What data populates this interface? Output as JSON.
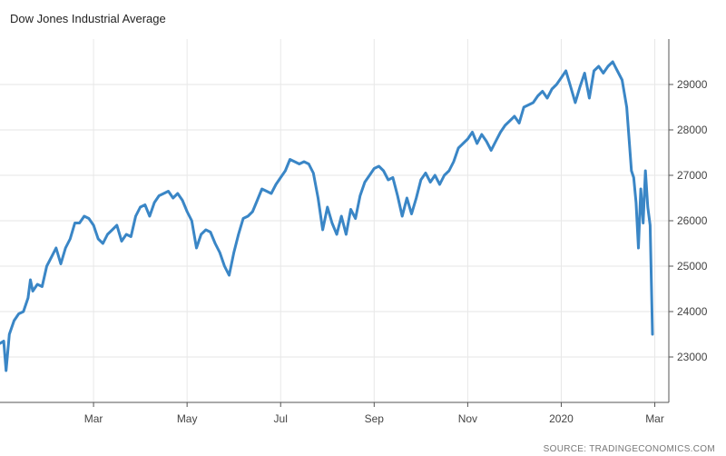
{
  "chart_data": {
    "type": "line",
    "title": "Dow Jones Industrial Average",
    "source": "SOURCE: TRADINGECONOMICS.COM",
    "xlabel": "",
    "ylabel": "",
    "ylim": [
      22000,
      30000
    ],
    "yticks": [
      23000,
      24000,
      25000,
      26000,
      27000,
      28000,
      29000
    ],
    "xticks": [
      {
        "label": "Mar",
        "x": 2.0
      },
      {
        "label": "May",
        "x": 4.0
      },
      {
        "label": "Jul",
        "x": 6.0
      },
      {
        "label": "Sep",
        "x": 8.0
      },
      {
        "label": "Nov",
        "x": 10.0
      },
      {
        "label": "2020",
        "x": 12.0
      },
      {
        "label": "Mar",
        "x": 14.0
      }
    ],
    "grid": true,
    "series": [
      {
        "values": [
          [
            0.0,
            23300
          ],
          [
            0.08,
            23350
          ],
          [
            0.13,
            22700
          ],
          [
            0.2,
            23500
          ],
          [
            0.3,
            23800
          ],
          [
            0.4,
            23950
          ],
          [
            0.5,
            24000
          ],
          [
            0.6,
            24300
          ],
          [
            0.65,
            24700
          ],
          [
            0.7,
            24450
          ],
          [
            0.8,
            24600
          ],
          [
            0.9,
            24550
          ],
          [
            1.0,
            25000
          ],
          [
            1.1,
            25200
          ],
          [
            1.2,
            25400
          ],
          [
            1.3,
            25050
          ],
          [
            1.4,
            25400
          ],
          [
            1.5,
            25600
          ],
          [
            1.6,
            25950
          ],
          [
            1.7,
            25950
          ],
          [
            1.8,
            26100
          ],
          [
            1.9,
            26050
          ],
          [
            2.0,
            25900
          ],
          [
            2.1,
            25600
          ],
          [
            2.2,
            25500
          ],
          [
            2.3,
            25700
          ],
          [
            2.4,
            25800
          ],
          [
            2.5,
            25900
          ],
          [
            2.6,
            25550
          ],
          [
            2.7,
            25700
          ],
          [
            2.8,
            25650
          ],
          [
            2.9,
            26100
          ],
          [
            3.0,
            26300
          ],
          [
            3.1,
            26350
          ],
          [
            3.2,
            26100
          ],
          [
            3.3,
            26400
          ],
          [
            3.4,
            26550
          ],
          [
            3.5,
            26600
          ],
          [
            3.6,
            26650
          ],
          [
            3.7,
            26500
          ],
          [
            3.8,
            26600
          ],
          [
            3.9,
            26450
          ],
          [
            4.0,
            26200
          ],
          [
            4.1,
            26000
          ],
          [
            4.2,
            25400
          ],
          [
            4.3,
            25700
          ],
          [
            4.4,
            25800
          ],
          [
            4.5,
            25750
          ],
          [
            4.6,
            25500
          ],
          [
            4.7,
            25300
          ],
          [
            4.8,
            25000
          ],
          [
            4.9,
            24800
          ],
          [
            5.0,
            25300
          ],
          [
            5.1,
            25700
          ],
          [
            5.2,
            26050
          ],
          [
            5.3,
            26100
          ],
          [
            5.4,
            26200
          ],
          [
            5.5,
            26450
          ],
          [
            5.6,
            26700
          ],
          [
            5.7,
            26650
          ],
          [
            5.8,
            26600
          ],
          [
            5.9,
            26800
          ],
          [
            6.0,
            26950
          ],
          [
            6.1,
            27100
          ],
          [
            6.2,
            27350
          ],
          [
            6.3,
            27300
          ],
          [
            6.4,
            27250
          ],
          [
            6.5,
            27300
          ],
          [
            6.6,
            27250
          ],
          [
            6.7,
            27050
          ],
          [
            6.8,
            26500
          ],
          [
            6.9,
            25800
          ],
          [
            7.0,
            26300
          ],
          [
            7.1,
            25950
          ],
          [
            7.2,
            25700
          ],
          [
            7.3,
            26100
          ],
          [
            7.4,
            25700
          ],
          [
            7.5,
            26250
          ],
          [
            7.6,
            26050
          ],
          [
            7.7,
            26550
          ],
          [
            7.8,
            26850
          ],
          [
            7.9,
            27000
          ],
          [
            8.0,
            27150
          ],
          [
            8.1,
            27200
          ],
          [
            8.2,
            27100
          ],
          [
            8.3,
            26900
          ],
          [
            8.4,
            26950
          ],
          [
            8.5,
            26550
          ],
          [
            8.6,
            26100
          ],
          [
            8.7,
            26500
          ],
          [
            8.8,
            26150
          ],
          [
            8.9,
            26500
          ],
          [
            9.0,
            26900
          ],
          [
            9.1,
            27050
          ],
          [
            9.2,
            26850
          ],
          [
            9.3,
            27000
          ],
          [
            9.4,
            26800
          ],
          [
            9.5,
            27000
          ],
          [
            9.6,
            27100
          ],
          [
            9.7,
            27300
          ],
          [
            9.8,
            27600
          ],
          [
            9.9,
            27700
          ],
          [
            10.0,
            27800
          ],
          [
            10.1,
            27950
          ],
          [
            10.2,
            27700
          ],
          [
            10.3,
            27900
          ],
          [
            10.4,
            27750
          ],
          [
            10.5,
            27550
          ],
          [
            10.6,
            27750
          ],
          [
            10.7,
            27950
          ],
          [
            10.8,
            28100
          ],
          [
            10.9,
            28200
          ],
          [
            11.0,
            28300
          ],
          [
            11.1,
            28150
          ],
          [
            11.2,
            28500
          ],
          [
            11.3,
            28550
          ],
          [
            11.4,
            28600
          ],
          [
            11.5,
            28750
          ],
          [
            11.6,
            28850
          ],
          [
            11.7,
            28700
          ],
          [
            11.8,
            28900
          ],
          [
            11.9,
            29000
          ],
          [
            12.0,
            29150
          ],
          [
            12.1,
            29300
          ],
          [
            12.2,
            28950
          ],
          [
            12.3,
            28600
          ],
          [
            12.4,
            28950
          ],
          [
            12.5,
            29250
          ],
          [
            12.6,
            28700
          ],
          [
            12.7,
            29300
          ],
          [
            12.8,
            29400
          ],
          [
            12.9,
            29250
          ],
          [
            13.0,
            29400
          ],
          [
            13.1,
            29500
          ],
          [
            13.15,
            29400
          ],
          [
            13.2,
            29300
          ],
          [
            13.3,
            29100
          ],
          [
            13.4,
            28500
          ],
          [
            13.45,
            27800
          ],
          [
            13.5,
            27100
          ],
          [
            13.55,
            26950
          ],
          [
            13.6,
            26400
          ],
          [
            13.65,
            25400
          ],
          [
            13.7,
            26700
          ],
          [
            13.75,
            25950
          ],
          [
            13.8,
            27100
          ],
          [
            13.85,
            26300
          ],
          [
            13.9,
            25900
          ],
          [
            13.95,
            23500
          ]
        ]
      }
    ]
  }
}
